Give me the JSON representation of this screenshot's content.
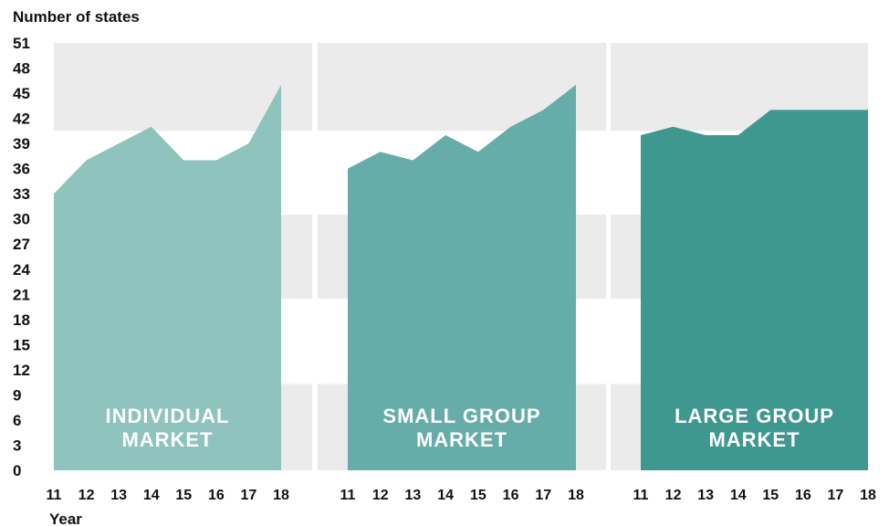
{
  "chart_data": {
    "type": "area",
    "ylabel": "Number of states",
    "xlabel": "Year",
    "ylim": [
      0,
      51
    ],
    "y_ticks": [
      0,
      3,
      6,
      9,
      12,
      15,
      18,
      21,
      24,
      27,
      30,
      33,
      36,
      39,
      42,
      45,
      48,
      51
    ],
    "x": [
      "11",
      "12",
      "13",
      "14",
      "15",
      "16",
      "17",
      "18"
    ],
    "series": [
      {
        "title_line1": "INDIVIDUAL",
        "title_line2": "MARKET",
        "color": "#8ec3be",
        "values": [
          33,
          37,
          39,
          41,
          37,
          37,
          39,
          46
        ]
      },
      {
        "title_line1": "SMALL GROUP",
        "title_line2": "MARKET",
        "color": "#66ada9",
        "values": [
          36,
          38,
          37,
          40,
          38,
          41,
          43,
          46
        ]
      },
      {
        "title_line1": "LARGE GROUP",
        "title_line2": "MARKET",
        "color": "#3f9890",
        "values": [
          40,
          41,
          40,
          40,
          43,
          43,
          43,
          43
        ]
      }
    ],
    "background_bands": {
      "color": "#ebebeb",
      "ranges": [
        [
          40.5,
          51
        ],
        [
          20.5,
          30.5
        ],
        [
          0,
          10.3
        ]
      ]
    }
  }
}
